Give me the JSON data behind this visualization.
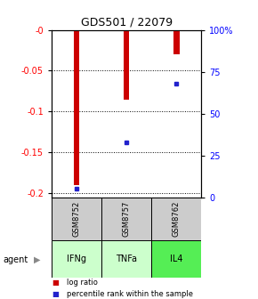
{
  "title": "GDS501 / 22079",
  "samples": [
    "GSM8752",
    "GSM8757",
    "GSM8762"
  ],
  "agents": [
    "IFNg",
    "TNFa",
    "IL4"
  ],
  "log_ratios": [
    -0.19,
    -0.085,
    -0.03
  ],
  "percentile_ranks": [
    5.0,
    33.0,
    68.0
  ],
  "bar_color": "#cc0000",
  "percentile_color": "#2222cc",
  "ylim_left": [
    -0.205,
    0.0
  ],
  "yticks_left": [
    0.0,
    -0.05,
    -0.1,
    -0.15,
    -0.2
  ],
  "ytick_labels_left": [
    "-0",
    "-0.05",
    "-0.1",
    "-0.15",
    "-0.2"
  ],
  "yticks_right_pct": [
    0,
    25,
    50,
    75,
    100
  ],
  "ylim_right": [
    0,
    100
  ],
  "bg_color": "#ffffff",
  "plot_bg": "#ffffff",
  "agent_colors": {
    "IFNg": "#ccffcc",
    "TNFa": "#ccffcc",
    "IL4": "#55ee55"
  },
  "sample_bg": "#cccccc",
  "legend_log": "log ratio",
  "legend_pct": "percentile rank within the sample",
  "bar_width": 0.12,
  "agent_label": "agent"
}
